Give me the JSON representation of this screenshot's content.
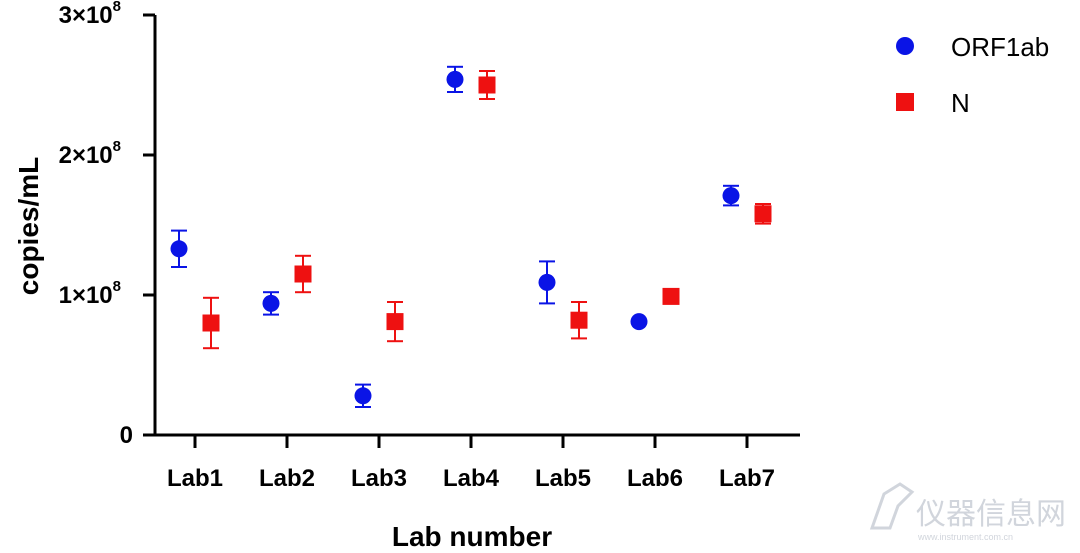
{
  "chart_data": {
    "type": "scatter",
    "xlabel": "Lab number",
    "ylabel": "copies/mL",
    "categories": [
      "Lab1",
      "Lab2",
      "Lab3",
      "Lab4",
      "Lab5",
      "Lab6",
      "Lab7"
    ],
    "ylim": [
      0,
      300000000
    ],
    "yticks": [
      {
        "value": 0,
        "mantissa": "0",
        "exp": ""
      },
      {
        "value": 100000000,
        "mantissa": "1×10",
        "exp": "8"
      },
      {
        "value": 200000000,
        "mantissa": "2×10",
        "exp": "8"
      },
      {
        "value": 300000000,
        "mantissa": "3×10",
        "exp": "8"
      }
    ],
    "grid": false,
    "legend_position": "top-right",
    "series": [
      {
        "name": "ORF1ab",
        "marker": "circle",
        "color": "#0a14e6",
        "values": [
          133000000,
          94000000,
          28000000,
          254000000,
          109000000,
          81000000,
          171000000
        ],
        "errors": [
          13000000,
          8000000,
          8000000,
          9000000,
          15000000,
          0,
          7000000
        ]
      },
      {
        "name": "N",
        "marker": "square",
        "color": "#ee1111",
        "values": [
          80000000,
          115000000,
          81000000,
          250000000,
          82000000,
          99000000,
          158000000
        ],
        "errors": [
          18000000,
          13000000,
          14000000,
          10000000,
          13000000,
          0,
          7000000
        ]
      }
    ]
  },
  "watermark": {
    "text": "仪器信息网",
    "subtext": "www.instrument.com.cn",
    "icon": "instrument-logo-icon"
  }
}
